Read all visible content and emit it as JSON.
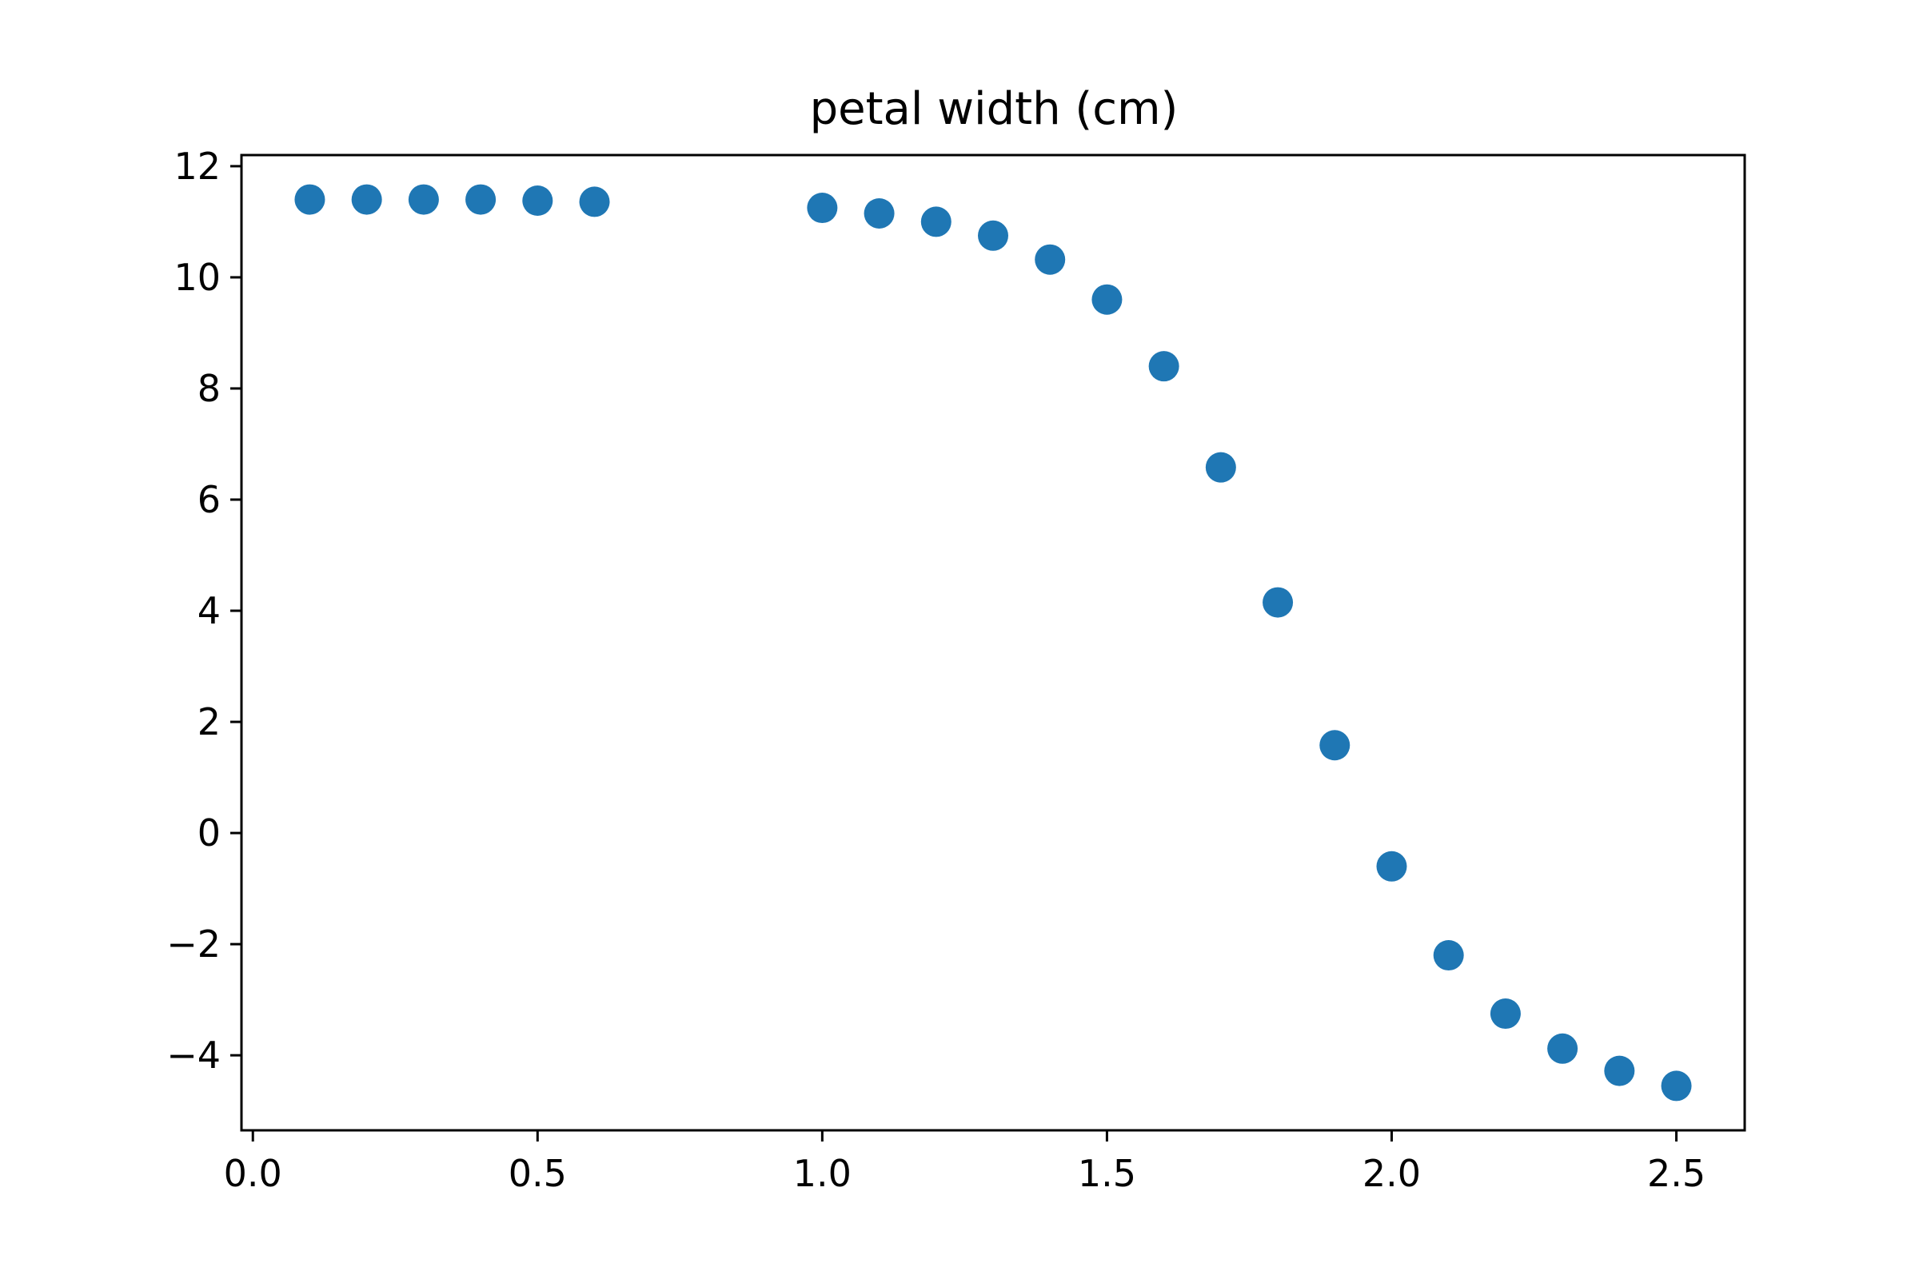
{
  "chart_data": {
    "type": "scatter",
    "title": "petal width (cm)",
    "xlabel": "",
    "ylabel": "",
    "xlim": [
      -0.02,
      2.62
    ],
    "ylim": [
      -5.35,
      12.2
    ],
    "x_ticks": [
      0.0,
      0.5,
      1.0,
      1.5,
      2.0,
      2.5
    ],
    "x_tick_labels": [
      "0.0",
      "0.5",
      "1.0",
      "1.5",
      "2.0",
      "2.5"
    ],
    "y_ticks": [
      -4,
      -2,
      0,
      2,
      4,
      6,
      8,
      10,
      12
    ],
    "y_tick_labels": [
      "−4",
      "−2",
      "0",
      "2",
      "4",
      "6",
      "8",
      "10",
      "12"
    ],
    "grid": false,
    "legend": "none",
    "color": "#1f77b4",
    "series": [
      {
        "x": [
          0.1,
          0.2,
          0.3,
          0.4,
          0.5,
          0.6,
          1.0,
          1.1,
          1.2,
          1.3,
          1.4,
          1.5,
          1.6,
          1.7,
          1.8,
          1.9,
          2.0,
          2.1,
          2.2,
          2.3,
          2.4,
          2.5
        ],
        "y": [
          11.4,
          11.4,
          11.4,
          11.4,
          11.38,
          11.36,
          11.25,
          11.15,
          11.0,
          10.75,
          10.32,
          9.6,
          8.4,
          6.58,
          4.15,
          1.58,
          -0.6,
          -2.2,
          -3.25,
          -3.88,
          -4.28,
          -4.55
        ]
      }
    ]
  }
}
